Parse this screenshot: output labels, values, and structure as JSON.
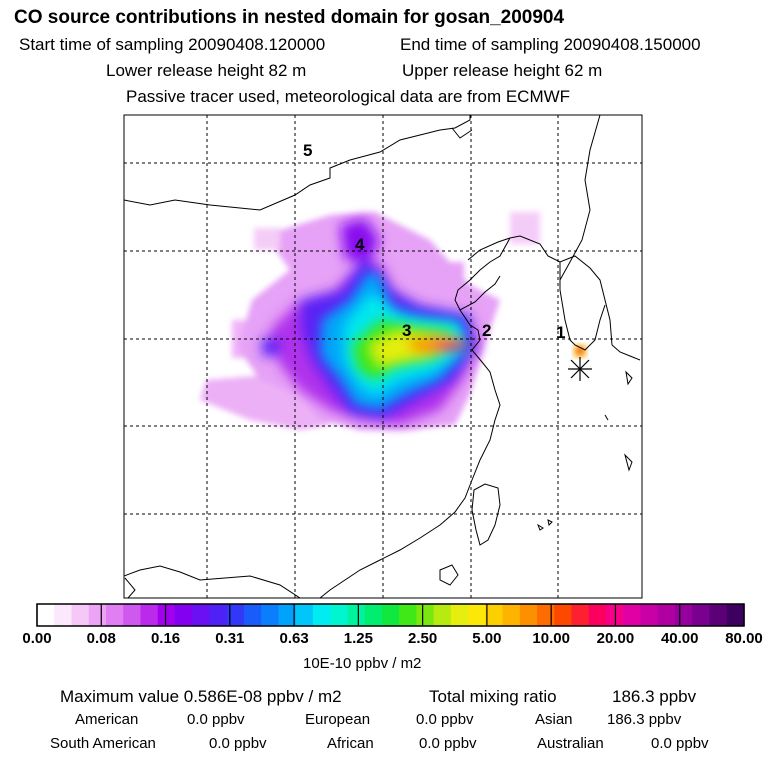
{
  "header": {
    "title": "CO  source contributions in nested domain for gosan_200904",
    "start_label": "Start time of sampling 20090408.120000",
    "end_label": "End time of sampling 20090408.150000",
    "lower_label": "Lower release height   82 m",
    "upper_label": "Upper release height   62 m",
    "note": "Passive tracer used, meteorological data are from ECMWF"
  },
  "map": {
    "region_labels": [
      "1",
      "2",
      "3",
      "4",
      "5"
    ],
    "receptor_marker": "asterisk-icon"
  },
  "colorbar": {
    "tick_labels": [
      "0.00",
      "0.08",
      "0.16",
      "0.31",
      "0.63",
      "1.25",
      "2.50",
      "5.00",
      "10.00",
      "20.00",
      "40.00",
      "80.00"
    ],
    "unit": "10E-10 ppbv / m2",
    "colors": [
      "#ffffff",
      "#fce8fc",
      "#f6c8f8",
      "#eea4f6",
      "#e07ef2",
      "#cf58ee",
      "#bb2aec",
      "#a000ee",
      "#8400f0",
      "#6a10f2",
      "#4e22f6",
      "#3238f8",
      "#1a5cfa",
      "#0a7efc",
      "#00a2fc",
      "#00c6fa",
      "#00ecf2",
      "#00f6d0",
      "#00f4a0",
      "#00ee70",
      "#10e840",
      "#40e818",
      "#7ae810",
      "#b6ea10",
      "#e6ee10",
      "#fce808",
      "#fcd000",
      "#fcb400",
      "#fc9000",
      "#fc6c00",
      "#fc4800",
      "#fc2030",
      "#fc0060",
      "#f4008a",
      "#e000a4",
      "#c800a6",
      "#b000a2",
      "#96009c",
      "#7a0090",
      "#5c0078",
      "#3e0060"
    ]
  },
  "summary": {
    "max_label": "Maximum value  0.586E-08 ppbv / m2",
    "total_label": "Total mixing ratio",
    "total_value": "186.3 ppbv",
    "american_label": "American",
    "american_value": "0.0 ppbv",
    "european_label": "European",
    "european_value": "0.0 ppbv",
    "asian_label": "Asian",
    "asian_value": "186.3 ppbv",
    "south_american_label": "South American",
    "south_american_value": "0.0 ppbv",
    "african_label": "African",
    "african_value": "0.0 ppbv",
    "australian_label": "Australian",
    "australian_value": "0.0 ppbv"
  }
}
